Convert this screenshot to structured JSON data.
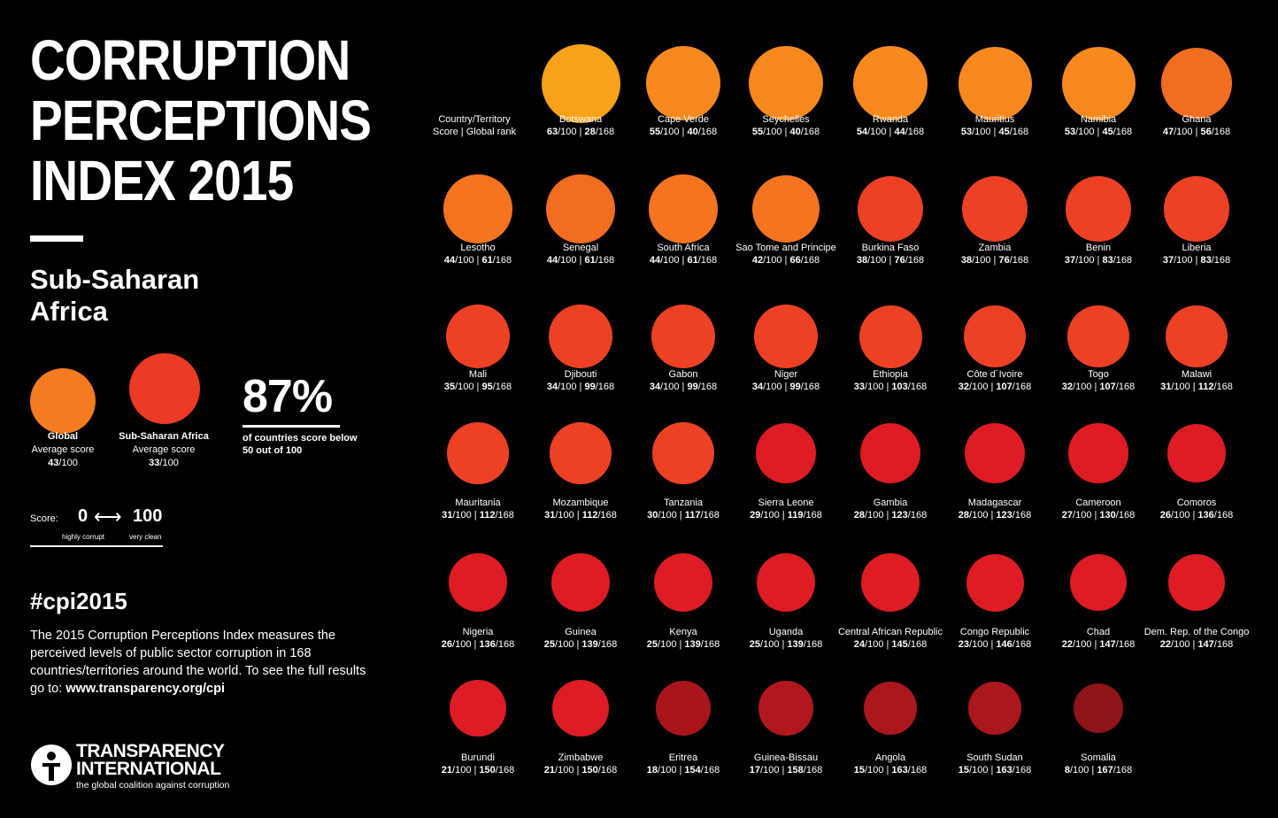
{
  "header": {
    "title": "CORRUPTION\nPERCEPTIONS\nINDEX 2015",
    "region": "Sub-Saharan\nAfrica"
  },
  "averages": {
    "global": {
      "label": "Global",
      "sub": "Average score",
      "score": "43",
      "denom": "/100",
      "color": "#F47B20"
    },
    "region": {
      "label": "Sub-Saharan Africa",
      "sub": "Average score",
      "score": "33",
      "denom": "/100",
      "color": "#EC3B24"
    },
    "percent": "87%",
    "percent_note": "of countries score below 50 out of 100"
  },
  "scale": {
    "label": "Score:",
    "low": "0",
    "arrow": "⟷",
    "high": "100",
    "low_text": "highly corrupt",
    "high_text": "very clean"
  },
  "hashtag": "#cpi2015",
  "description": {
    "text": "The 2015 Corruption Perceptions Index measures the perceived levels of public sector corruption in 168 countries/territories around the world. To see the full results go to: ",
    "link": "www.transparency.org/cpi"
  },
  "logo": {
    "line1": "TRANSPARENCY",
    "line2": "INTERNATIONAL",
    "tagline": "the global coalition against corruption"
  },
  "legend_key": {
    "line1": "Country/Territory",
    "line2": "Score | Global rank"
  },
  "chart_data": {
    "type": "scatter",
    "title": "CORRUPTION PERCEPTIONS INDEX 2015",
    "subtitle": "Sub-Saharan Africa",
    "score_max": 100,
    "rank_total": 168,
    "points": [
      {
        "name": "Botswana",
        "score": 63,
        "rank": 28,
        "color": "#F9A11B"
      },
      {
        "name": "Cape Verde",
        "score": 55,
        "rank": 40,
        "color": "#F7891F"
      },
      {
        "name": "Seychelles",
        "score": 55,
        "rank": 40,
        "color": "#F7891F"
      },
      {
        "name": "Rwanda",
        "score": 54,
        "rank": 44,
        "color": "#F7891F"
      },
      {
        "name": "Mauritius",
        "score": 53,
        "rank": 45,
        "color": "#F7891F"
      },
      {
        "name": "Namibia",
        "score": 53,
        "rank": 45,
        "color": "#F7891F"
      },
      {
        "name": "Ghana",
        "score": 47,
        "rank": 56,
        "color": "#F06D22"
      },
      {
        "name": "Lesotho",
        "score": 44,
        "rank": 61,
        "color": "#F47420"
      },
      {
        "name": "Senegal",
        "score": 44,
        "rank": 61,
        "color": "#F06D22"
      },
      {
        "name": "South Africa",
        "score": 44,
        "rank": 61,
        "color": "#F47420"
      },
      {
        "name": "Sao Tome and Principe",
        "score": 42,
        "rank": 66,
        "color": "#F47420"
      },
      {
        "name": "Burkina Faso",
        "score": 38,
        "rank": 76,
        "color": "#EC4125"
      },
      {
        "name": "Zambia",
        "score": 38,
        "rank": 76,
        "color": "#EC4125"
      },
      {
        "name": "Benin",
        "score": 37,
        "rank": 83,
        "color": "#EC4125"
      },
      {
        "name": "Liberia",
        "score": 37,
        "rank": 83,
        "color": "#EC4125"
      },
      {
        "name": "Mali",
        "score": 35,
        "rank": 95,
        "color": "#EC4125"
      },
      {
        "name": "Djibouti",
        "score": 34,
        "rank": 99,
        "color": "#EC4125"
      },
      {
        "name": "Gabon",
        "score": 34,
        "rank": 99,
        "color": "#EC4125"
      },
      {
        "name": "Niger",
        "score": 34,
        "rank": 99,
        "color": "#EC4125"
      },
      {
        "name": "Ethiopia",
        "score": 33,
        "rank": 103,
        "color": "#EC4125"
      },
      {
        "name": "Côte d´Ivoire",
        "score": 32,
        "rank": 107,
        "color": "#EC4125"
      },
      {
        "name": "Togo",
        "score": 32,
        "rank": 107,
        "color": "#EC4125"
      },
      {
        "name": "Malawi",
        "score": 31,
        "rank": 112,
        "color": "#EC4125"
      },
      {
        "name": "Mauritania",
        "score": 31,
        "rank": 112,
        "color": "#EC4125"
      },
      {
        "name": "Mozambique",
        "score": 31,
        "rank": 112,
        "color": "#EC4125"
      },
      {
        "name": "Tanzania",
        "score": 30,
        "rank": 117,
        "color": "#EC4125"
      },
      {
        "name": "Sierra Leone",
        "score": 29,
        "rank": 119,
        "color": "#DD1C24"
      },
      {
        "name": "Gambia",
        "score": 28,
        "rank": 123,
        "color": "#DD1C24"
      },
      {
        "name": "Madagascar",
        "score": 28,
        "rank": 123,
        "color": "#DD1C24"
      },
      {
        "name": "Cameroon",
        "score": 27,
        "rank": 130,
        "color": "#DD1C24"
      },
      {
        "name": "Comoros",
        "score": 26,
        "rank": 136,
        "color": "#DD1C24"
      },
      {
        "name": "Nigeria",
        "score": 26,
        "rank": 136,
        "color": "#DD1C24"
      },
      {
        "name": "Guinea",
        "score": 25,
        "rank": 139,
        "color": "#DD1C24"
      },
      {
        "name": "Kenya",
        "score": 25,
        "rank": 139,
        "color": "#DD1C24"
      },
      {
        "name": "Uganda",
        "score": 25,
        "rank": 139,
        "color": "#DD1C24"
      },
      {
        "name": "Central African Republic",
        "score": 24,
        "rank": 145,
        "color": "#DD1C24"
      },
      {
        "name": "Congo Republic",
        "score": 23,
        "rank": 146,
        "color": "#DD1C24"
      },
      {
        "name": "Chad",
        "score": 22,
        "rank": 147,
        "color": "#DD1C24"
      },
      {
        "name": "Dem. Rep. of the Congo",
        "score": 22,
        "rank": 147,
        "color": "#DD1C24"
      },
      {
        "name": "Burundi",
        "score": 21,
        "rank": 150,
        "color": "#DD1C24"
      },
      {
        "name": "Zimbabwe",
        "score": 21,
        "rank": 150,
        "color": "#DD1C24"
      },
      {
        "name": "Eritrea",
        "score": 18,
        "rank": 154,
        "color": "#A8161C"
      },
      {
        "name": "Guinea-Bissau",
        "score": 17,
        "rank": 158,
        "color": "#B0181D"
      },
      {
        "name": "Angola",
        "score": 15,
        "rank": 163,
        "color": "#AA171C"
      },
      {
        "name": "South Sudan",
        "score": 15,
        "rank": 163,
        "color": "#AA171C"
      },
      {
        "name": "Somalia",
        "score": 8,
        "rank": 167,
        "color": "#8E1418"
      }
    ]
  }
}
